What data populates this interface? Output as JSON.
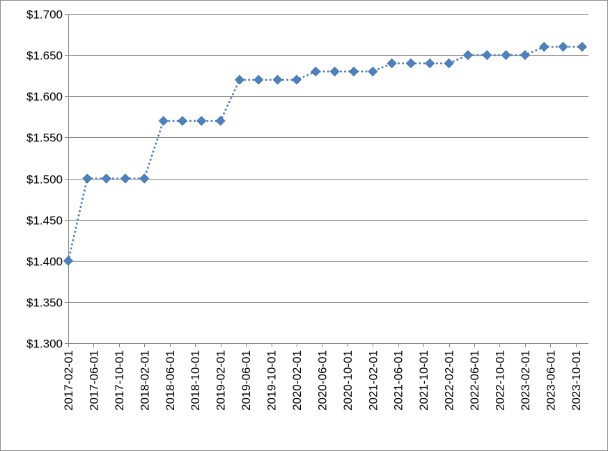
{
  "chart_data": {
    "type": "line",
    "title": "",
    "xlabel": "",
    "ylabel": "",
    "ylim": [
      1.3,
      1.7
    ],
    "y_ticks": [
      "$1.300",
      "$1.350",
      "$1.400",
      "$1.450",
      "$1.500",
      "$1.550",
      "$1.600",
      "$1.650",
      "$1.700"
    ],
    "y_tick_values": [
      1.3,
      1.35,
      1.4,
      1.45,
      1.5,
      1.55,
      1.6,
      1.65,
      1.7
    ],
    "x_tick_labels": [
      "2017-02-01",
      "2017-06-01",
      "2017-10-01",
      "2018-02-01",
      "2018-06-01",
      "2018-10-01",
      "2019-02-01",
      "2019-06-01",
      "2019-10-01",
      "2020-02-01",
      "2020-06-01",
      "2020-10-01",
      "2021-02-01",
      "2021-06-01",
      "2021-10-01",
      "2022-02-01",
      "2022-06-01",
      "2022-10-01",
      "2023-02-01",
      "2023-06-01",
      "2023-10-01"
    ],
    "x_range": [
      "2017-02-01",
      "2023-12-01"
    ],
    "grid": {
      "horizontal": true,
      "vertical": false
    },
    "legend": "none",
    "series": [
      {
        "color": "#4f81bd",
        "line_style": "dotted",
        "marker": "diamond",
        "x": [
          "2017-02-01",
          "2017-05-01",
          "2017-08-01",
          "2017-11-01",
          "2018-02-01",
          "2018-05-01",
          "2018-08-01",
          "2018-11-01",
          "2019-02-01",
          "2019-05-01",
          "2019-08-01",
          "2019-11-01",
          "2020-02-01",
          "2020-05-01",
          "2020-08-01",
          "2020-11-01",
          "2021-02-01",
          "2021-05-01",
          "2021-08-01",
          "2021-11-01",
          "2022-02-01",
          "2022-05-01",
          "2022-08-01",
          "2022-11-01",
          "2023-02-01",
          "2023-05-01",
          "2023-08-01",
          "2023-11-01"
        ],
        "values": [
          1.4,
          1.5,
          1.5,
          1.5,
          1.5,
          1.57,
          1.57,
          1.57,
          1.57,
          1.62,
          1.62,
          1.62,
          1.62,
          1.63,
          1.63,
          1.63,
          1.63,
          1.64,
          1.64,
          1.64,
          1.64,
          1.65,
          1.65,
          1.65,
          1.65,
          1.66,
          1.66,
          1.66
        ]
      }
    ]
  }
}
